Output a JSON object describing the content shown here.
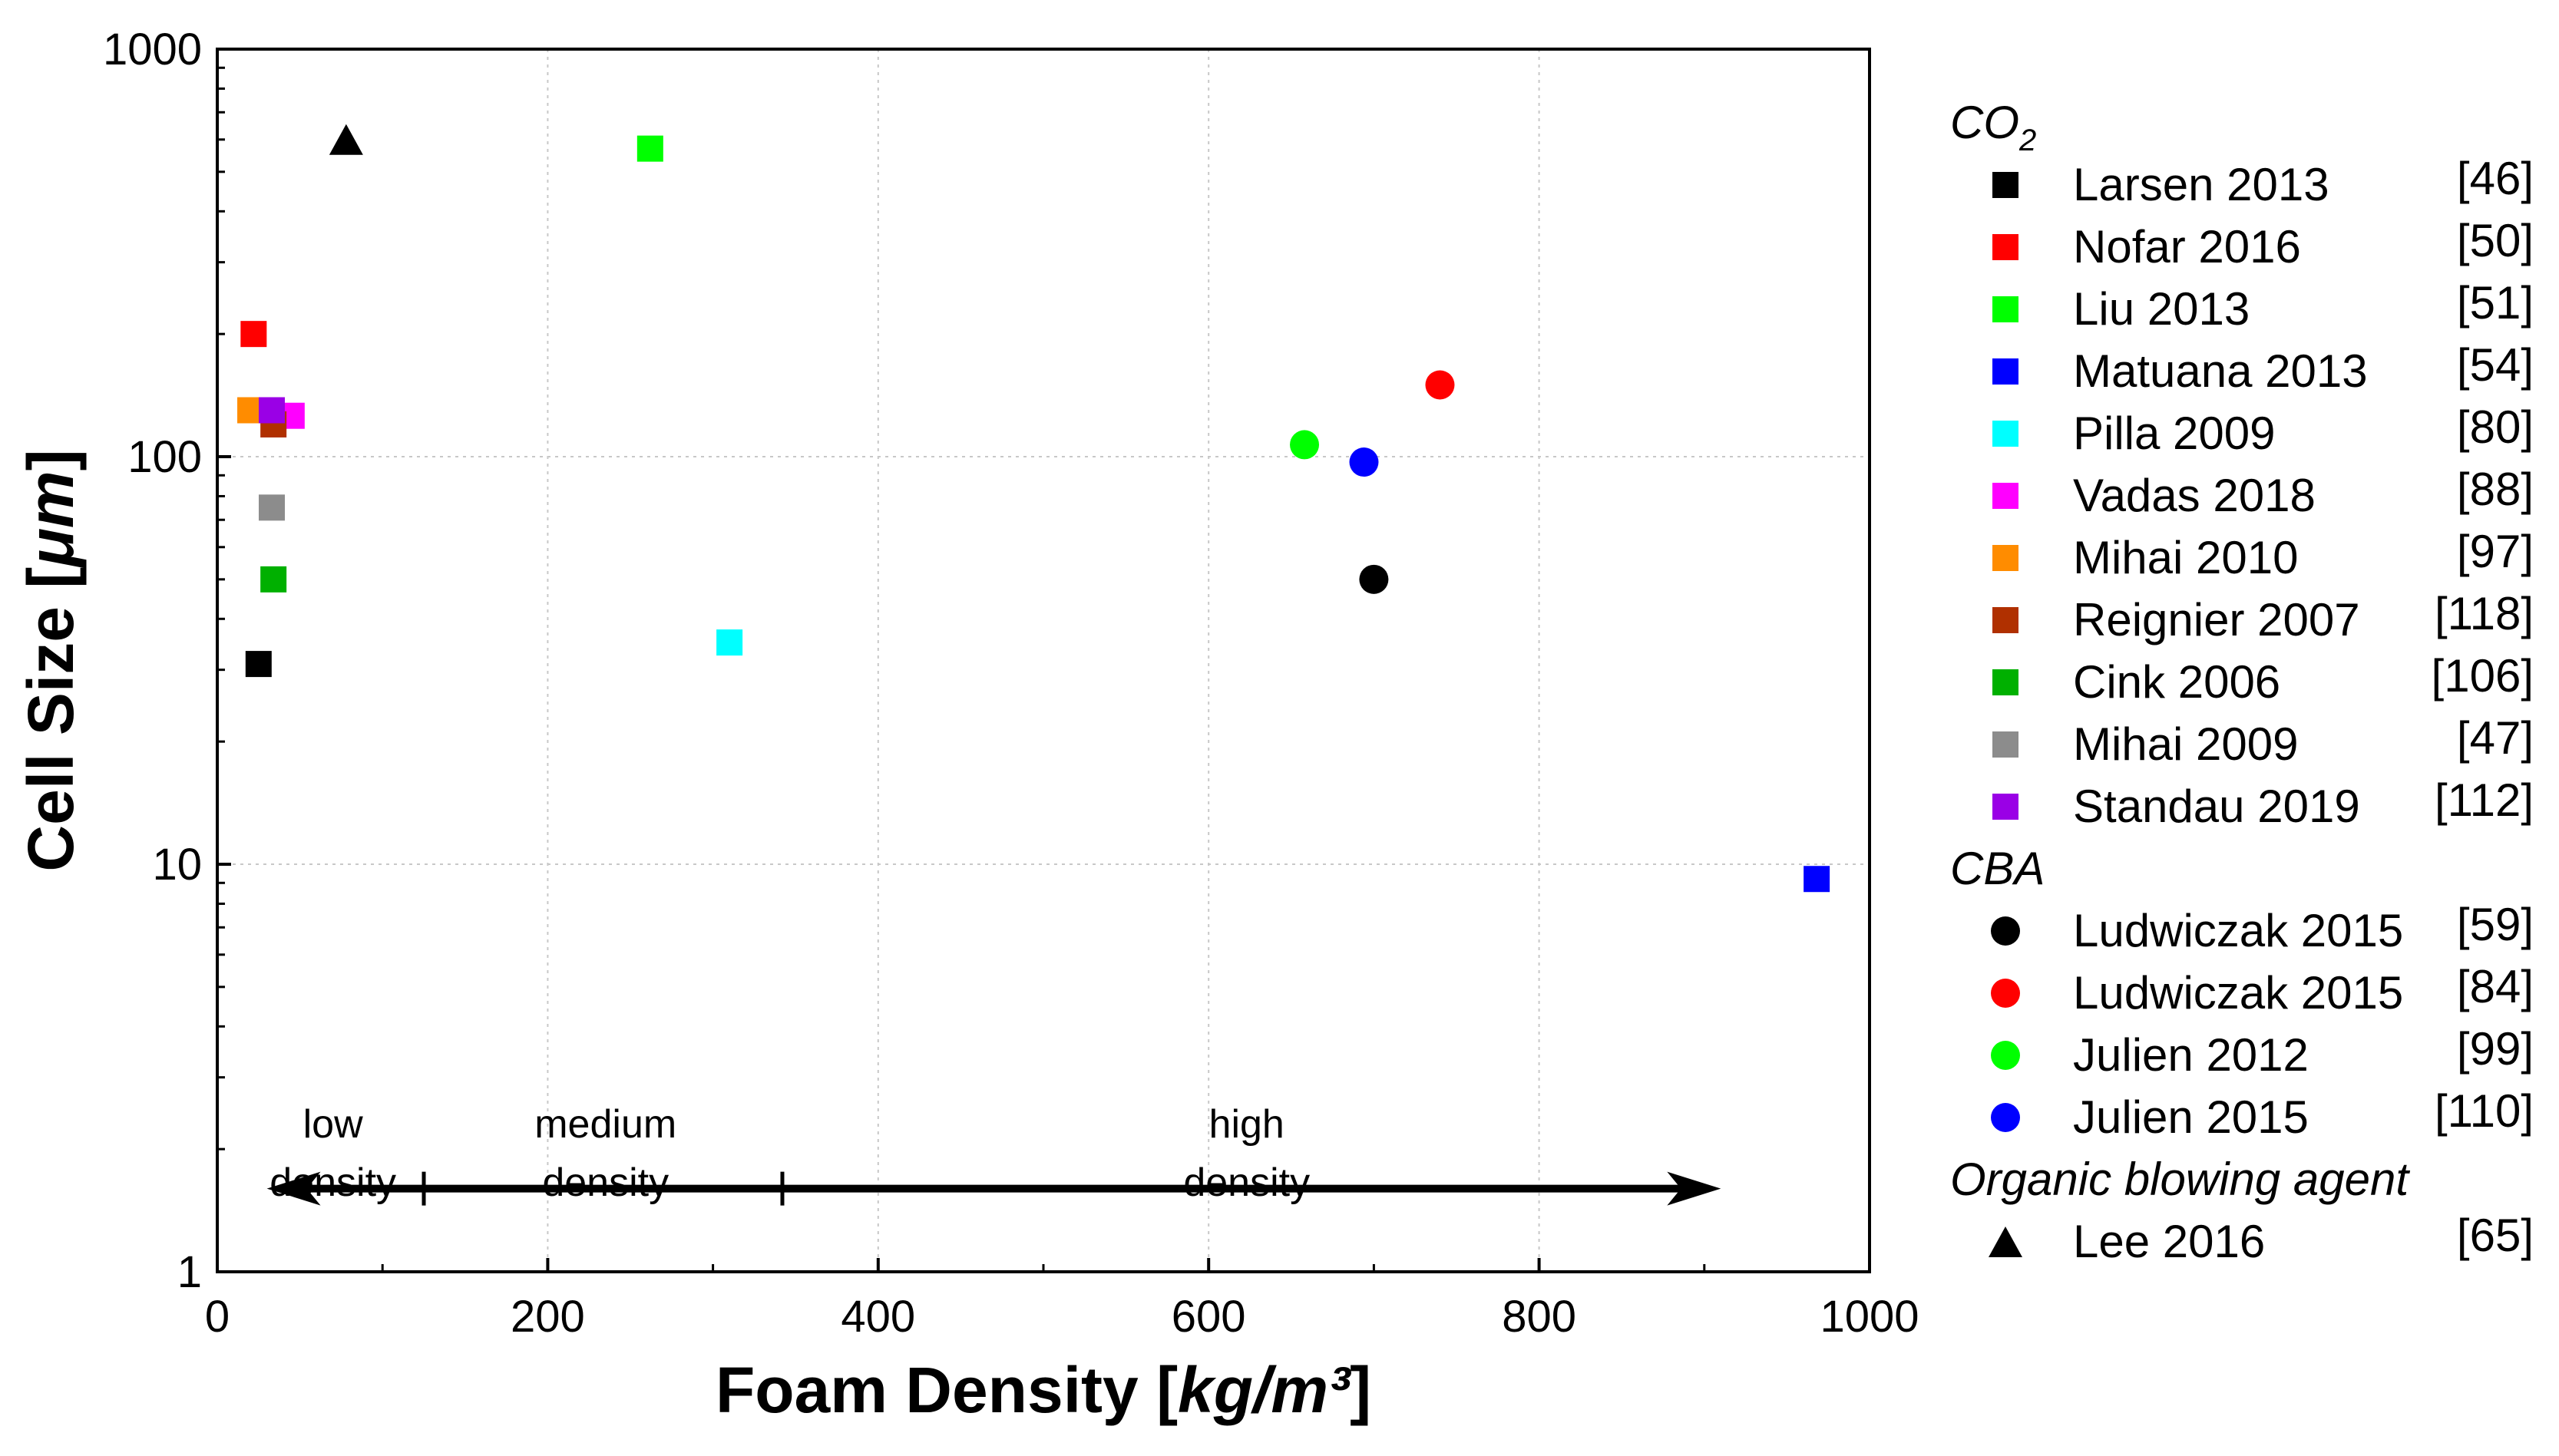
{
  "chart_data": {
    "type": "scatter",
    "xlabel": "Foam Density [kg/m³]",
    "xlabel_parts": {
      "prefix": "Foam Density [",
      "unit": "kg/m³",
      "suffix": "]"
    },
    "ylabel": "Cell Size [μm]",
    "ylabel_parts": {
      "prefix": "Cell Size [",
      "unit": "μm",
      "suffix": "]"
    },
    "xlim": [
      0,
      1000
    ],
    "ylim": [
      1,
      1000
    ],
    "yscale": "log",
    "grid": true,
    "x_ticks": [
      0,
      200,
      400,
      600,
      800,
      1000
    ],
    "x_tick_labels": [
      "0",
      "200",
      "400",
      "600",
      "800",
      "1000"
    ],
    "y_ticks": [
      1,
      10,
      100,
      1000
    ],
    "y_tick_labels": [
      "1",
      "10",
      "100",
      "1000"
    ],
    "legend_position": "right-outside",
    "groups": [
      {
        "heading": "CO",
        "heading_sub": "2",
        "series": [
          {
            "name": "Larsen 2013",
            "ref": "[46]",
            "color": "#000000",
            "marker": "square",
            "points": [
              [
                25,
                31
              ]
            ]
          },
          {
            "name": "Nofar 2016",
            "ref": "[50]",
            "color": "#ff0000",
            "marker": "square",
            "points": [
              [
                22,
                200
              ]
            ]
          },
          {
            "name": "Liu 2013",
            "ref": "[51]",
            "color": "#00ff00",
            "marker": "square",
            "points": [
              [
                262,
                570
              ]
            ]
          },
          {
            "name": "Matuana 2013",
            "ref": "[54]",
            "color": "#0000ff",
            "marker": "square",
            "points": [
              [
                968,
                9.2
              ]
            ]
          },
          {
            "name": "Pilla 2009",
            "ref": "[80]",
            "color": "#00ffff",
            "marker": "square",
            "points": [
              [
                310,
                35
              ]
            ]
          },
          {
            "name": "Vadas 2018",
            "ref": "[88]",
            "color": "#ff00ff",
            "marker": "square",
            "points": [
              [
                45,
                126
              ]
            ]
          },
          {
            "name": "Mihai 2010",
            "ref": "[97]",
            "color": "#ff8c00",
            "marker": "square",
            "points": [
              [
                20,
                130
              ]
            ]
          },
          {
            "name": "Reignier 2007",
            "ref": "[118]",
            "color": "#b03000",
            "marker": "square",
            "points": [
              [
                34,
                120
              ]
            ]
          },
          {
            "name": "Cink 2006",
            "ref": "[106]",
            "color": "#00b000",
            "marker": "square",
            "points": [
              [
                34,
                50
              ]
            ]
          },
          {
            "name": "Mihai 2009",
            "ref": "[47]",
            "color": "#8c8c8c",
            "marker": "square",
            "points": [
              [
                33,
                75
              ]
            ]
          },
          {
            "name": "Standau 2019",
            "ref": "[112]",
            "color": "#9a00e6",
            "marker": "square",
            "points": [
              [
                33,
                130
              ]
            ]
          }
        ]
      },
      {
        "heading": "CBA",
        "series": [
          {
            "name": "Ludwiczak 2015",
            "ref": "[59]",
            "color": "#000000",
            "marker": "circle",
            "points": [
              [
                700,
                50
              ]
            ]
          },
          {
            "name": "Ludwiczak 2015",
            "ref": "[84]",
            "color": "#ff0000",
            "marker": "circle",
            "points": [
              [
                740,
                150
              ]
            ]
          },
          {
            "name": "Julien 2012",
            "ref": "[99]",
            "color": "#00ff00",
            "marker": "circle",
            "points": [
              [
                658,
                107
              ]
            ]
          },
          {
            "name": "Julien 2015",
            "ref": "[110]",
            "color": "#0000ff",
            "marker": "circle",
            "points": [
              [
                694,
                97
              ]
            ]
          }
        ]
      },
      {
        "heading": "Organic blowing agent",
        "series": [
          {
            "name": "Lee 2016",
            "ref": "[65]",
            "color": "#000000",
            "marker": "triangle",
            "points": [
              [
                78,
                600
              ]
            ]
          }
        ]
      }
    ],
    "annotations": {
      "labels": [
        {
          "line1": "low",
          "line2": "density",
          "x": 70
        },
        {
          "line1": "medium",
          "line2": "density",
          "x": 235
        },
        {
          "line1": "high",
          "line2": "density",
          "x": 623
        }
      ],
      "arrow": {
        "from_x": 30,
        "to_x": 910,
        "y": 1.6,
        "divisions_x": [
          125,
          342
        ]
      }
    }
  }
}
